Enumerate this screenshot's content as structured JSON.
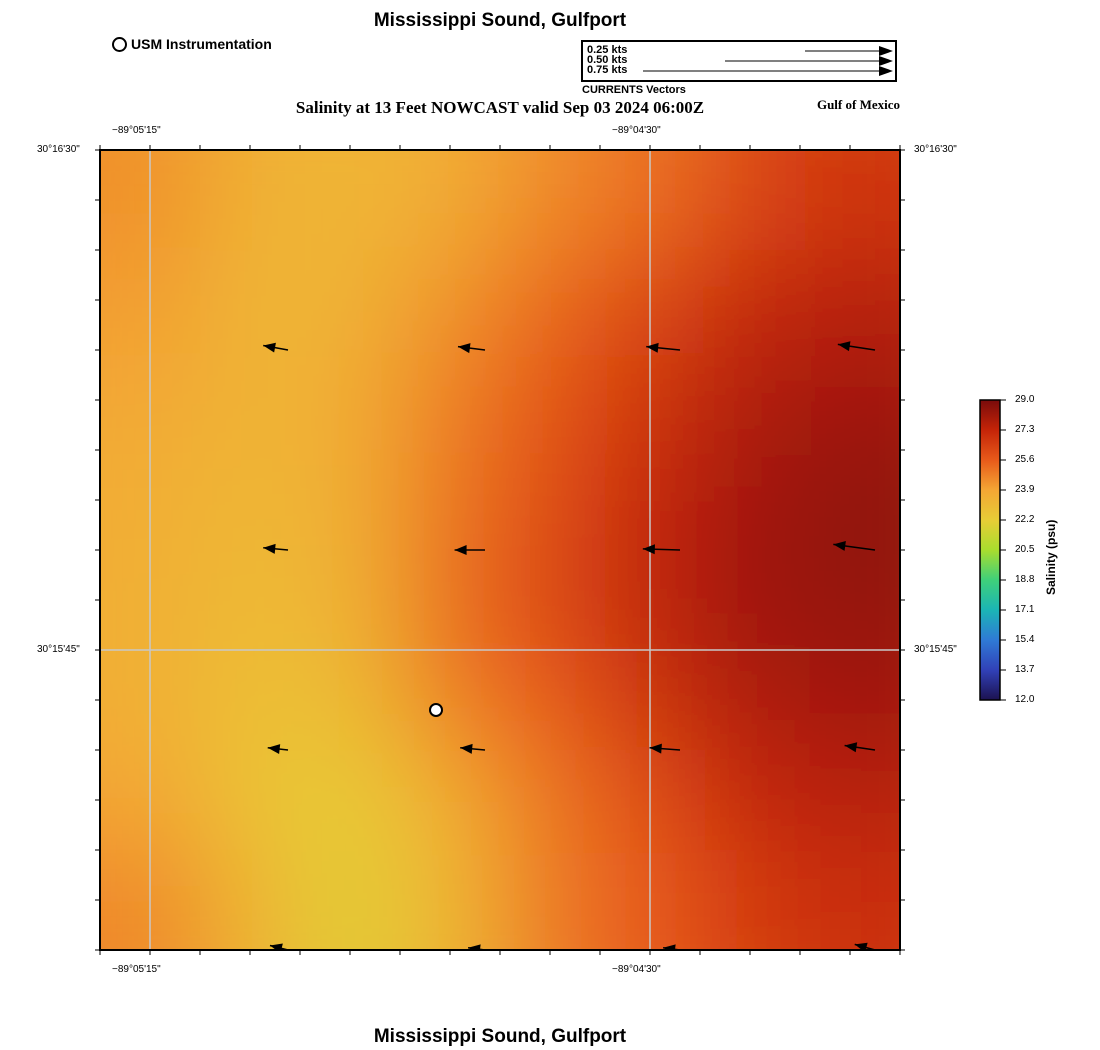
{
  "title_top": "Mississippi Sound, Gulfport",
  "title_bottom": "Mississippi Sound, Gulfport",
  "subtitle": "Salinity at 13 Feet NOWCAST valid Sep 03 2024 06:00Z",
  "region_label": "Gulf of Mexico",
  "station_legend": {
    "label": "USM Instrumentation",
    "marker_icon": "station-circle-icon"
  },
  "current_legend": {
    "caption": "CURRENTS Vectors",
    "scales": [
      {
        "label": "0.25 kts",
        "speed_kts": 0.25
      },
      {
        "label": "0.50 kts",
        "speed_kts": 0.5
      },
      {
        "label": "0.75 kts",
        "speed_kts": 0.75
      }
    ]
  },
  "map_axes": {
    "top_ticks": [
      "−89°05'15\"",
      "−89°04'30\""
    ],
    "bottom_ticks": [
      "−89°05'15\"",
      "−89°04'30\""
    ],
    "left_ticks": [
      "30°16'30\"",
      "30°15'45\""
    ],
    "right_ticks": [
      "30°16'30\"",
      "30°15'45\""
    ],
    "grid": true
  },
  "colorbar": {
    "title": "Salinity (psu)",
    "ticks": [
      "29.0",
      "27.3",
      "25.6",
      "23.9",
      "22.2",
      "20.5",
      "18.8",
      "17.1",
      "15.4",
      "13.7",
      "12.0"
    ],
    "min": 12.0,
    "max": 29.0,
    "colors": [
      "#7a0b0b",
      "#c42408",
      "#e85a1a",
      "#f4a634",
      "#e7cc36",
      "#a9dd2e",
      "#3fd07a",
      "#1bb5b5",
      "#2f7ad6",
      "#3141b8",
      "#1c1250"
    ]
  },
  "chart_data": {
    "type": "heatmap",
    "title": "Salinity at 13 Feet NOWCAST valid Sep 03 2024 06:00Z",
    "xlabel": "",
    "ylabel": "",
    "value_label": "Salinity (psu)",
    "value_range": [
      12.0,
      29.0
    ],
    "grid": true,
    "salinity_field": [
      [
        24.4,
        23.4,
        23.2,
        23.6,
        24.5,
        25.1,
        26.2,
        26.8
      ],
      [
        24.1,
        23.2,
        23.3,
        24.3,
        25.3,
        26.2,
        27.2,
        27.6
      ],
      [
        23.8,
        23.3,
        23.6,
        24.8,
        25.8,
        26.8,
        27.8,
        28.1
      ],
      [
        23.6,
        23.1,
        23.5,
        25.0,
        26.0,
        27.3,
        28.1,
        28.5
      ],
      [
        23.5,
        23.0,
        23.3,
        25.2,
        26.2,
        27.4,
        28.2,
        28.4
      ],
      [
        23.5,
        22.8,
        22.9,
        24.8,
        25.6,
        26.9,
        27.8,
        28.1
      ],
      [
        23.9,
        22.6,
        22.2,
        23.6,
        25.0,
        26.0,
        27.3,
        27.6
      ],
      [
        24.6,
        23.3,
        22.0,
        23.2,
        24.9,
        25.6,
        26.6,
        27.0
      ]
    ],
    "current_vectors": [
      {
        "row": 0,
        "col": 0,
        "u": -0.22,
        "v": 0.04
      },
      {
        "row": 0,
        "col": 1,
        "u": -0.24,
        "v": 0.03
      },
      {
        "row": 0,
        "col": 2,
        "u": -0.3,
        "v": 0.03
      },
      {
        "row": 0,
        "col": 3,
        "u": -0.33,
        "v": 0.05
      },
      {
        "row": 1,
        "col": 0,
        "u": -0.22,
        "v": 0.02
      },
      {
        "row": 1,
        "col": 1,
        "u": -0.27,
        "v": 0.0
      },
      {
        "row": 1,
        "col": 2,
        "u": -0.33,
        "v": 0.01
      },
      {
        "row": 1,
        "col": 3,
        "u": -0.37,
        "v": 0.05
      },
      {
        "row": 2,
        "col": 0,
        "u": -0.18,
        "v": 0.02
      },
      {
        "row": 2,
        "col": 1,
        "u": -0.22,
        "v": 0.02
      },
      {
        "row": 2,
        "col": 2,
        "u": -0.27,
        "v": 0.02
      },
      {
        "row": 2,
        "col": 3,
        "u": -0.27,
        "v": 0.04
      },
      {
        "row": 3,
        "col": 0,
        "u": -0.16,
        "v": 0.04
      },
      {
        "row": 3,
        "col": 1,
        "u": -0.15,
        "v": 0.02
      },
      {
        "row": 3,
        "col": 2,
        "u": -0.15,
        "v": 0.02
      },
      {
        "row": 3,
        "col": 3,
        "u": -0.18,
        "v": 0.05
      }
    ],
    "stations": [
      {
        "name": "USM Instrumentation",
        "x_frac": 0.42,
        "y_frac": 0.7
      }
    ]
  }
}
